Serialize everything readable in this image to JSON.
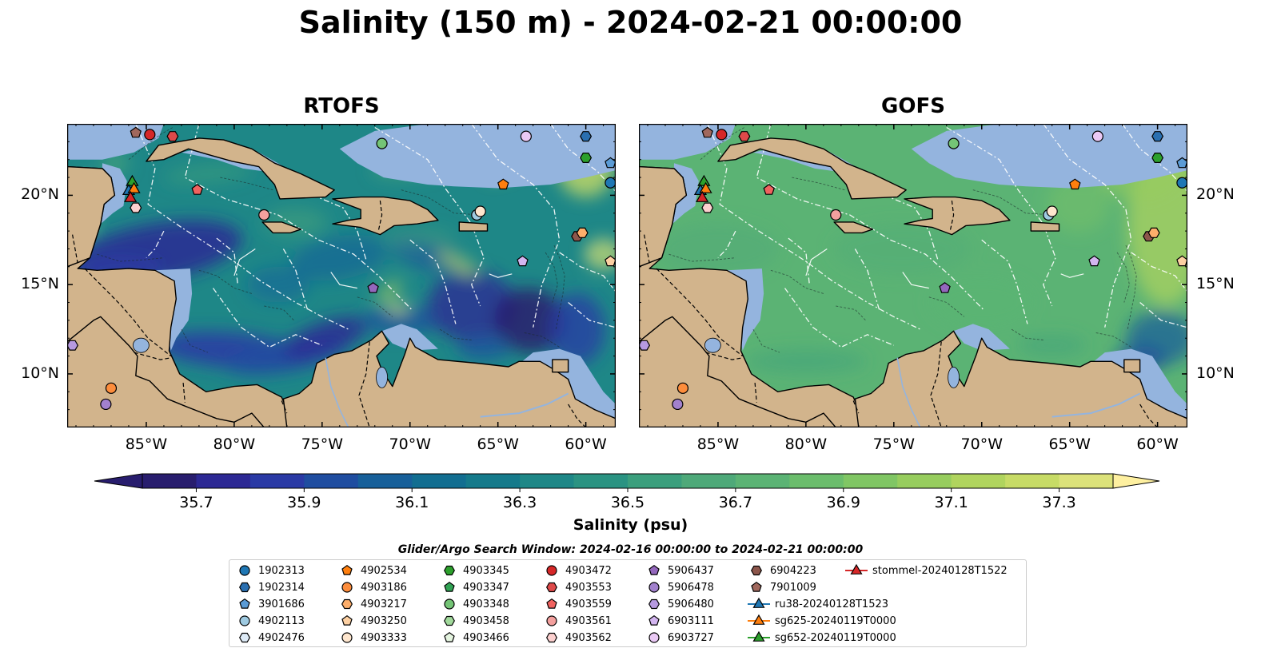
{
  "title": "Salinity (150 m) - 2024-02-21 00:00:00",
  "panels": [
    {
      "name": "RTOFS",
      "variant": "rtofs"
    },
    {
      "name": "GOFS",
      "variant": "gofs"
    }
  ],
  "axes": {
    "x_ticks": [
      "85°W",
      "80°W",
      "75°W",
      "70°W",
      "65°W",
      "60°W"
    ],
    "x_tick_values": [
      -85,
      -80,
      -75,
      -70,
      -65,
      -60
    ],
    "y_ticks": [
      "20°N",
      "15°N",
      "10°N"
    ],
    "y_tick_values": [
      20,
      15,
      10
    ],
    "lon_range": [
      -89.5,
      -58.3
    ],
    "lat_range": [
      7.0,
      24.0
    ]
  },
  "colorbar": {
    "label": "Salinity (psu)",
    "ticks": [
      "35.7",
      "35.9",
      "36.1",
      "36.3",
      "36.5",
      "36.7",
      "36.9",
      "37.1",
      "37.3"
    ],
    "range": [
      35.6,
      37.4
    ],
    "colors": [
      "#281d6e",
      "#2c2894",
      "#2a3aa5",
      "#1f4da0",
      "#17609a",
      "#126e91",
      "#157a8b",
      "#1e8787",
      "#2a9382",
      "#3b9f7d",
      "#4ea979",
      "#5bb374",
      "#6bbd6c",
      "#80c664",
      "#97cd5e",
      "#b0d45e",
      "#c7db66",
      "#dce27a"
    ]
  },
  "search_window": "Glider/Argo Search Window: 2024-02-16 00:00:00 to 2024-02-21 00:00:00",
  "legend": [
    {
      "label": "1902313",
      "marker": "circle",
      "color": "#1f77b4"
    },
    {
      "label": "1902314",
      "marker": "hexagon",
      "color": "#2a6fb0"
    },
    {
      "label": "3901686",
      "marker": "pentagon",
      "color": "#5b9bd5"
    },
    {
      "label": "4902113",
      "marker": "circle",
      "color": "#9ecae1"
    },
    {
      "label": "4902476",
      "marker": "hexagon",
      "color": "#deebf7"
    },
    {
      "label": "4902534",
      "marker": "pentagon",
      "color": "#ff7f0e"
    },
    {
      "label": "4903186",
      "marker": "circle",
      "color": "#fd8d3c"
    },
    {
      "label": "4903217",
      "marker": "hexagon",
      "color": "#fdae6b"
    },
    {
      "label": "4903250",
      "marker": "pentagon",
      "color": "#fdd0a2"
    },
    {
      "label": "4903333",
      "marker": "circle",
      "color": "#fee6ce"
    },
    {
      "label": "4903345",
      "marker": "hexagon",
      "color": "#2ca02c"
    },
    {
      "label": "4903347",
      "marker": "pentagon",
      "color": "#31a354"
    },
    {
      "label": "4903348",
      "marker": "circle",
      "color": "#74c476"
    },
    {
      "label": "4903458",
      "marker": "hexagon",
      "color": "#a1d99b"
    },
    {
      "label": "4903466",
      "marker": "pentagon",
      "color": "#e5f5e0"
    },
    {
      "label": "4903472",
      "marker": "circle",
      "color": "#d62728"
    },
    {
      "label": "4903553",
      "marker": "hexagon",
      "color": "#de4a4a"
    },
    {
      "label": "4903559",
      "marker": "pentagon",
      "color": "#f0625f"
    },
    {
      "label": "4903561",
      "marker": "circle",
      "color": "#f4a09e"
    },
    {
      "label": "4903562",
      "marker": "hexagon",
      "color": "#fcd0cf"
    },
    {
      "label": "5906437",
      "marker": "pentagon",
      "color": "#9467bd"
    },
    {
      "label": "5906478",
      "marker": "circle",
      "color": "#a281cd"
    },
    {
      "label": "5906480",
      "marker": "hexagon",
      "color": "#b79ae0"
    },
    {
      "label": "6903111",
      "marker": "pentagon",
      "color": "#d3b5f0"
    },
    {
      "label": "6903727",
      "marker": "circle",
      "color": "#eac9f5"
    },
    {
      "label": "6904223",
      "marker": "hexagon",
      "color": "#8c564b"
    },
    {
      "label": "7901009",
      "marker": "pentagon",
      "color": "#a0685d"
    },
    {
      "label": "ru38-20240128T1523",
      "marker": "triangle-line",
      "color": "#1f77b4"
    },
    {
      "label": "sg625-20240119T0000",
      "marker": "triangle-line",
      "color": "#ff7f0e"
    },
    {
      "label": "sg652-20240119T0000",
      "marker": "triangle-line",
      "color": "#2ca02c"
    },
    {
      "label": "stommel-20240128T1522",
      "marker": "triangle-line",
      "color": "#d62728"
    }
  ],
  "points": [
    {
      "lon": -84.8,
      "lat": 23.4,
      "marker": "circle",
      "color": "#d62728"
    },
    {
      "lon": -83.5,
      "lat": 23.3,
      "marker": "hexagon",
      "color": "#de4a4a"
    },
    {
      "lon": -85.6,
      "lat": 23.5,
      "marker": "pentagon",
      "color": "#a0685d"
    },
    {
      "lon": -71.6,
      "lat": 22.9,
      "marker": "circle",
      "color": "#74c476"
    },
    {
      "lon": -63.4,
      "lat": 23.3,
      "marker": "circle",
      "color": "#eac9f5"
    },
    {
      "lon": -60.0,
      "lat": 23.3,
      "marker": "hexagon",
      "color": "#2a6fb0"
    },
    {
      "lon": -60.0,
      "lat": 22.1,
      "marker": "hexagon",
      "color": "#2ca02c"
    },
    {
      "lon": -58.6,
      "lat": 21.8,
      "marker": "pentagon",
      "color": "#5b9bd5"
    },
    {
      "lon": -58.6,
      "lat": 20.7,
      "marker": "circle",
      "color": "#1f77b4"
    },
    {
      "lon": -64.7,
      "lat": 20.6,
      "marker": "pentagon",
      "color": "#ff7f0e"
    },
    {
      "lon": -82.1,
      "lat": 20.3,
      "marker": "pentagon",
      "color": "#f0625f"
    },
    {
      "lon": -85.6,
      "lat": 19.3,
      "marker": "hexagon",
      "color": "#fcd0cf"
    },
    {
      "lon": -78.3,
      "lat": 18.9,
      "marker": "circle",
      "color": "#f4a09e"
    },
    {
      "lon": -66.2,
      "lat": 18.9,
      "marker": "circle",
      "color": "#9ecae1"
    },
    {
      "lon": -66.0,
      "lat": 19.1,
      "marker": "circle",
      "color": "#fee6ce"
    },
    {
      "lon": -60.5,
      "lat": 17.7,
      "marker": "hexagon",
      "color": "#8c564b"
    },
    {
      "lon": -60.2,
      "lat": 17.9,
      "marker": "hexagon",
      "color": "#fdae6b"
    },
    {
      "lon": -63.6,
      "lat": 16.3,
      "marker": "pentagon",
      "color": "#d3b5f0"
    },
    {
      "lon": -58.6,
      "lat": 16.3,
      "marker": "pentagon",
      "color": "#fdd0a2"
    },
    {
      "lon": -72.1,
      "lat": 14.8,
      "marker": "pentagon",
      "color": "#9467bd"
    },
    {
      "lon": -89.2,
      "lat": 11.6,
      "marker": "hexagon",
      "color": "#b79ae0"
    },
    {
      "lon": -87.0,
      "lat": 9.2,
      "marker": "circle",
      "color": "#fd8d3c"
    },
    {
      "lon": -87.3,
      "lat": 8.3,
      "marker": "circle",
      "color": "#a281cd"
    },
    {
      "lon": -85.8,
      "lat": 20.8,
      "marker": "triangle",
      "color": "#2ca02c"
    },
    {
      "lon": -86.0,
      "lat": 20.3,
      "marker": "triangle",
      "color": "#1f77b4"
    },
    {
      "lon": -85.7,
      "lat": 20.4,
      "marker": "triangle",
      "color": "#ff7f0e"
    },
    {
      "lon": -85.9,
      "lat": 19.9,
      "marker": "triangle",
      "color": "#d62728"
    }
  ]
}
